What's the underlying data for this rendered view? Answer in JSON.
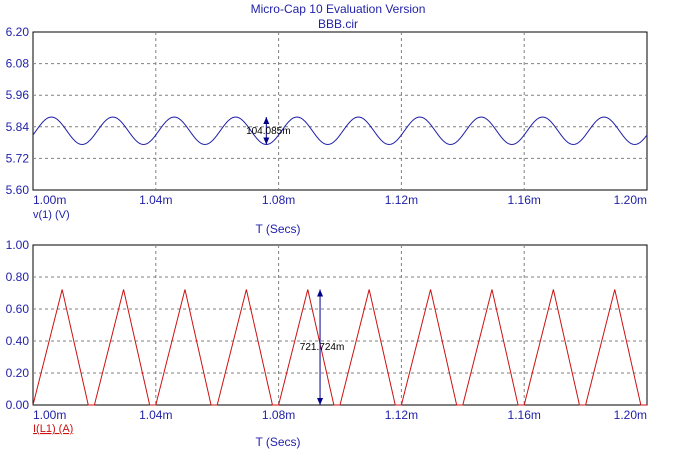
{
  "window": {
    "title": "Micro-Cap 10 Evaluation Version",
    "subtitle": "BBB.cir"
  },
  "colors": {
    "text": "#1f1fa8",
    "grid": "#808080",
    "axis": "#000000",
    "trace_voltage": "#1f1fa8",
    "trace_current": "#cc1111",
    "marker": "#00008b"
  },
  "chart_data": [
    {
      "type": "line",
      "xlabel": "T (Secs)",
      "ylabel": "",
      "trace_label": "v(1) (V)",
      "xlim": [
        0.001,
        0.0012
      ],
      "ylim": [
        5.6,
        6.2
      ],
      "x_ticks": [
        "1.00m",
        "1.04m",
        "1.08m",
        "1.12m",
        "1.16m",
        "1.20m"
      ],
      "y_ticks": [
        "5.60",
        "5.72",
        "5.84",
        "5.96",
        "6.08",
        "6.20"
      ],
      "grid": true,
      "series": [
        {
          "name": "v(1) (V)",
          "waveform": "sine",
          "mean": 5.825,
          "amplitude": 0.052,
          "period": 2e-05,
          "first_peak_t": 0.001006,
          "t_start": 0.001,
          "t_end": 0.0012
        }
      ],
      "annotation": {
        "text": "104.085m",
        "t": 0.001076,
        "y_top": 5.877,
        "y_bottom": 5.773
      }
    },
    {
      "type": "line",
      "xlabel": "T (Secs)",
      "ylabel": "",
      "trace_label": "I(L1) (A)",
      "xlim": [
        0.001,
        0.0012
      ],
      "ylim": [
        0.0,
        1.0
      ],
      "x_ticks": [
        "1.00m",
        "1.04m",
        "1.08m",
        "1.12m",
        "1.16m",
        "1.20m"
      ],
      "y_ticks": [
        "0.00",
        "0.20",
        "0.40",
        "0.60",
        "0.80",
        "1.00"
      ],
      "grid": true,
      "series": [
        {
          "name": "I(L1) (A)",
          "waveform": "triangle-with-zero-gap",
          "peak": 0.722,
          "period": 2e-05,
          "first_peak_t": 0.0010095,
          "rise_time": 9.5e-06,
          "fall_time": 8.5e-06,
          "t_start": 0.001,
          "t_end": 0.0012
        }
      ],
      "annotation": {
        "text": "721.724m",
        "t": 0.0010935,
        "y_top": 0.722,
        "y_bottom": 0.0
      }
    }
  ]
}
